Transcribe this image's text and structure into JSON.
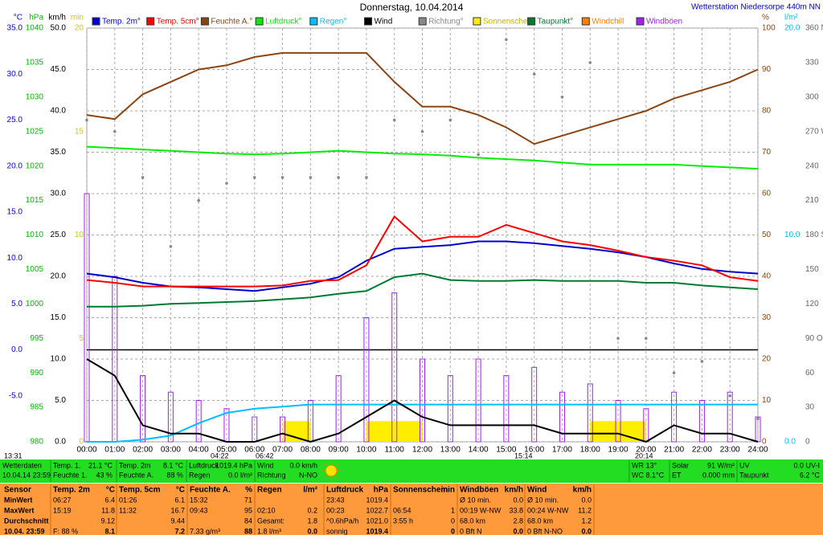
{
  "chart_data": {
    "type": "multi",
    "title": "Donnerstag, 10.04.2014",
    "station": "Wetterstation Niedersorpe 440m NN",
    "grid": true,
    "grid_axis": "kmh",
    "xlim": [
      0,
      24
    ],
    "xticks": [
      {
        "value": 0,
        "label": "00:00"
      },
      {
        "value": 1,
        "label": "01:00"
      },
      {
        "value": 2,
        "label": "02:00"
      },
      {
        "value": 3,
        "label": "03:00"
      },
      {
        "value": 4,
        "label": "04:00"
      },
      {
        "value": 5,
        "label": "05:00"
      },
      {
        "value": 6,
        "label": "06:00"
      },
      {
        "value": 7,
        "label": "07:00"
      },
      {
        "value": 8,
        "label": "08:00"
      },
      {
        "value": 9,
        "label": "09:00"
      },
      {
        "value": 10,
        "label": "10:00"
      },
      {
        "value": 11,
        "label": "11:00"
      },
      {
        "value": 12,
        "label": "12:00"
      },
      {
        "value": 13,
        "label": "13:00"
      },
      {
        "value": 14,
        "label": "14:00"
      },
      {
        "value": 15,
        "label": "15:00"
      },
      {
        "value": 16,
        "label": "16:00"
      },
      {
        "value": 17,
        "label": "17:00"
      },
      {
        "value": 18,
        "label": "18:00"
      },
      {
        "value": 19,
        "label": "19:00"
      },
      {
        "value": 20,
        "label": "20:00"
      },
      {
        "value": 21,
        "label": "21:00"
      },
      {
        "value": 22,
        "label": "22:00"
      },
      {
        "value": 23,
        "label": "23:00"
      },
      {
        "value": 24,
        "label": "24:00"
      }
    ],
    "x": [
      0,
      1,
      2,
      3,
      4,
      5,
      6,
      7,
      8,
      9,
      10,
      11,
      12,
      13,
      14,
      15,
      16,
      17,
      18,
      19,
      20,
      21,
      22,
      23,
      24
    ],
    "axes": {
      "c": {
        "unit": "°C",
        "color": "#0000ff",
        "side": "left",
        "lim": [
          -10,
          35
        ],
        "ticks": [
          {
            "value": 35,
            "label": "35.0"
          },
          {
            "value": 30,
            "label": "30.0"
          },
          {
            "value": 25,
            "label": "25.0"
          },
          {
            "value": 20,
            "label": "20.0"
          },
          {
            "value": 15,
            "label": "15.0"
          },
          {
            "value": 10,
            "label": "10.0"
          },
          {
            "value": 5,
            "label": "5.0"
          },
          {
            "value": 0,
            "label": "0.0"
          },
          {
            "value": -5,
            "label": "-5.0"
          }
        ]
      },
      "hpa": {
        "unit": "hPa",
        "color": "#00bb00",
        "side": "left",
        "lim": [
          980,
          1040
        ],
        "ticks": [
          1040,
          1035,
          1030,
          1025,
          1020,
          1015,
          1010,
          1005,
          1000,
          995,
          990,
          985,
          980
        ]
      },
      "kmh": {
        "unit": "km/h",
        "color": "#000000",
        "side": "left",
        "lim": [
          0,
          50
        ],
        "ticks": [
          {
            "value": 50,
            "label": "50.0"
          },
          {
            "value": 45,
            "label": "45.0"
          },
          {
            "value": 40,
            "label": "40.0"
          },
          {
            "value": 35,
            "label": "35.0"
          },
          {
            "value": 30,
            "label": "30.0"
          },
          {
            "value": 25,
            "label": "25.0"
          },
          {
            "value": 20,
            "label": "20.0"
          },
          {
            "value": 15,
            "label": "15.0"
          },
          {
            "value": 10,
            "label": "10.0"
          },
          {
            "value": 5,
            "label": "5.0"
          },
          {
            "value": 0,
            "label": "0.0"
          }
        ]
      },
      "min": {
        "unit": "min",
        "color": "#d4c800",
        "side": "left",
        "lim": [
          0,
          20
        ],
        "ticks": [
          20,
          15,
          10,
          5,
          0
        ]
      },
      "pct": {
        "unit": "%",
        "color": "#8b4513",
        "side": "right",
        "lim": [
          0,
          100
        ],
        "ticks": [
          100,
          90,
          80,
          70,
          60,
          50,
          40,
          30,
          20,
          10,
          0
        ]
      },
      "rain": {
        "unit": "l/m²",
        "color": "#00bfff",
        "side": "right",
        "lim": [
          0,
          20
        ],
        "ticks": [
          {
            "value": 20,
            "label": "20.0"
          },
          {
            "value": 10,
            "label": "10.0"
          },
          {
            "value": 0,
            "label": "0.0"
          }
        ]
      },
      "dir": {
        "color": "#666666",
        "side": "right",
        "lim": [
          0,
          360
        ],
        "ticks": [
          {
            "value": 360,
            "label": "360 N"
          },
          330,
          300,
          {
            "value": 270,
            "label": "270 W"
          },
          240,
          210,
          {
            "value": 180,
            "label": "180 S"
          },
          150,
          120,
          {
            "value": 90,
            "label": "90 O"
          },
          60,
          30,
          0
        ]
      }
    },
    "series": [
      {
        "name": "Temp. 2m°",
        "color": "#0000cc",
        "axis": "c",
        "style": "line",
        "values": [
          8.3,
          7.9,
          7.3,
          6.9,
          6.8,
          6.6,
          6.4,
          6.8,
          7.2,
          7.9,
          9.7,
          11.0,
          11.2,
          11.4,
          11.8,
          11.8,
          11.6,
          11.3,
          11.0,
          10.6,
          10.1,
          9.4,
          8.8,
          8.5,
          8.3
        ]
      },
      {
        "name": "Temp. 5cm°",
        "color": "#ff0000",
        "axis": "c",
        "style": "line",
        "values": [
          7.6,
          7.3,
          6.9,
          6.9,
          6.9,
          6.9,
          6.9,
          7.0,
          7.5,
          7.6,
          9.2,
          14.5,
          11.8,
          12.3,
          12.3,
          13.6,
          12.7,
          11.8,
          11.4,
          10.8,
          10.1,
          9.7,
          9.2,
          7.9,
          7.5
        ]
      },
      {
        "name": "Feuchte A.°",
        "color": "#8b4513",
        "axis": "pct",
        "style": "line",
        "values": [
          79,
          78,
          84,
          87,
          90,
          91,
          93,
          94,
          94,
          94,
          94,
          87,
          81,
          81,
          79,
          76,
          72,
          74,
          76,
          78,
          80,
          83,
          85,
          87,
          90
        ]
      },
      {
        "name": "Luftdruck°",
        "color": "#00ee00",
        "axis": "hpa",
        "style": "line",
        "values": [
          1022.8,
          1022.6,
          1022.4,
          1022.2,
          1022.0,
          1021.8,
          1021.7,
          1021.8,
          1022.0,
          1022.2,
          1022.0,
          1021.8,
          1021.7,
          1021.5,
          1021.2,
          1021.0,
          1020.8,
          1020.5,
          1020.2,
          1020.2,
          1020.2,
          1020.2,
          1020.0,
          1019.8,
          1019.6
        ]
      },
      {
        "name": "Regen°",
        "color": "#00bfff",
        "axis": "rain",
        "style": "line",
        "values": [
          0,
          0,
          0.1,
          0.3,
          0.9,
          1.4,
          1.6,
          1.7,
          1.8,
          1.8,
          1.8,
          1.8,
          1.8,
          1.8,
          1.8,
          1.8,
          1.8,
          1.8,
          1.8,
          1.8,
          1.8,
          1.8,
          1.8,
          1.8,
          1.8
        ]
      },
      {
        "name": "Wind",
        "color": "#000000",
        "axis": "kmh",
        "style": "line",
        "values": [
          10,
          8,
          2,
          1,
          1,
          0,
          0,
          1,
          0,
          1,
          3,
          5,
          3,
          2,
          2,
          2,
          2,
          1,
          1,
          1,
          0,
          2,
          1,
          1,
          0
        ]
      },
      {
        "name": "Richtung°",
        "color": "#888888",
        "axis": "dir",
        "style": "dots",
        "values": [
          280,
          270,
          230,
          170,
          210,
          225,
          230,
          230,
          230,
          230,
          230,
          280,
          270,
          280,
          250,
          350,
          320,
          300,
          330,
          90,
          90,
          60,
          70,
          40,
          20
        ]
      },
      {
        "name": "Sonnenschein",
        "color": "#ffee00",
        "axis": "min",
        "style": "blocks",
        "values": [
          0,
          0,
          0,
          0,
          0,
          0,
          0,
          1,
          0,
          0,
          1,
          1,
          0,
          0,
          0,
          0,
          0,
          0,
          1,
          1,
          0,
          0,
          0,
          0,
          0
        ]
      },
      {
        "name": "Taupunkt°",
        "color": "#007a33",
        "axis": "c",
        "style": "line",
        "values": [
          4.7,
          4.7,
          4.8,
          5.0,
          5.1,
          5.2,
          5.3,
          5.5,
          5.7,
          6.1,
          6.4,
          7.9,
          8.3,
          7.6,
          7.5,
          7.5,
          7.6,
          7.5,
          7.5,
          7.5,
          7.3,
          7.3,
          7.0,
          6.8,
          6.6
        ]
      },
      {
        "name": "Windböen",
        "color": "#a020f0",
        "axis": "kmh",
        "style": "bars",
        "values": [
          30,
          20,
          8,
          6,
          5,
          4,
          3,
          3,
          5,
          8,
          15,
          18,
          10,
          8,
          10,
          8,
          9,
          6,
          7,
          5,
          4,
          6,
          5,
          6,
          3
        ]
      }
    ],
    "legend_extra": [
      {
        "name": "Windchill",
        "color": "#ff8000"
      }
    ],
    "time_notes": [
      "13:31",
      "04:22",
      "06:42",
      "15:14",
      "20:14"
    ]
  },
  "status": {
    "blocks": [
      [
        [
          "Wetterdaten"
        ],
        [
          "10.04.14 23:59"
        ]
      ],
      [
        [
          "Temp. 1.",
          "21.1 °C"
        ],
        [
          "Feuchte 1.",
          "43 %"
        ]
      ],
      [
        [
          "Temp. 2m",
          "8.1 °C"
        ],
        [
          "Feuchte A.",
          "88 %"
        ]
      ],
      [
        [
          "Luftdruck",
          "1019.4 hPa"
        ],
        [
          "Regen",
          "0.0 l/m²"
        ]
      ],
      [
        [
          "Wind",
          "0.0 km/h"
        ],
        [
          "Richtung",
          "N-NO"
        ]
      ],
      [
        [
          "WR 13°"
        ],
        [
          "WC 8.1°C"
        ]
      ],
      [
        [
          "Solar",
          "91 W/m²"
        ],
        [
          "ET",
          "0.000 mm"
        ]
      ],
      [
        [
          "UV",
          "0.0 UV-I"
        ],
        [
          "Taupunkt",
          "6.2 °C"
        ]
      ]
    ]
  },
  "table": {
    "sensor_header": "Sensor",
    "row_labels": [
      "MinWert",
      "MaxWert",
      "Durchschnitt",
      "10.04. 23:59"
    ],
    "columns": [
      {
        "header": [
          "Temp. 2m",
          "°C"
        ],
        "rows": [
          [
            "06:27",
            "6.4"
          ],
          [
            "15:19",
            "11.8"
          ],
          [
            null,
            "9.12"
          ],
          [
            "F: 88 %",
            "8.1"
          ]
        ]
      },
      {
        "header": [
          "Temp. 5cm",
          "°C"
        ],
        "rows": [
          [
            "01:26",
            "6.1"
          ],
          [
            "11:32",
            "16.7"
          ],
          [
            null,
            "9.44"
          ],
          [
            null,
            "7.2"
          ]
        ]
      },
      {
        "header": [
          "Feuchte A.",
          "%"
        ],
        "rows": [
          [
            "15:32",
            "71"
          ],
          [
            "09:43",
            "95"
          ],
          [
            null,
            "84"
          ],
          [
            "7.33 g/m³",
            "88"
          ]
        ]
      },
      {
        "header": [
          "Regen",
          "l/m²"
        ],
        "rows": [
          [
            null,
            null
          ],
          [
            "02:10",
            "0.2"
          ],
          [
            "Gesamt:",
            "1.8"
          ],
          [
            "1.8 l/m³",
            "0.0"
          ]
        ]
      },
      {
        "header": [
          "Luftdruck",
          "hPa"
        ],
        "rows": [
          [
            "23:43",
            "1019.4"
          ],
          [
            "00:23",
            "1022.7"
          ],
          [
            "^0.6hPa/h",
            "1021.0"
          ],
          [
            "sonnig",
            "1019.4"
          ]
        ]
      },
      {
        "header": [
          "Sonnenschein",
          "min"
        ],
        "rows": [
          [
            null,
            null
          ],
          [
            "06:54",
            "1"
          ],
          [
            "3:55 h",
            "0"
          ],
          [
            null,
            "0"
          ]
        ]
      },
      {
        "header": [
          "Windböen",
          "km/h"
        ],
        "rows": [
          [
            "Ø 10 min.",
            "0.0"
          ],
          [
            "00:19  W-NW",
            "33.8"
          ],
          [
            "68.0 km",
            "2.8"
          ],
          [
            "0 Bft N",
            "0.0"
          ]
        ]
      },
      {
        "header": [
          "Wind",
          "km/h"
        ],
        "rows": [
          [
            "Ø 10 min.",
            "0.0"
          ],
          [
            "00:24  W-NW",
            "11.2"
          ],
          [
            "68.0 km",
            "1.2"
          ],
          [
            "0 Bft N-NO",
            "0.0"
          ]
        ]
      }
    ]
  }
}
